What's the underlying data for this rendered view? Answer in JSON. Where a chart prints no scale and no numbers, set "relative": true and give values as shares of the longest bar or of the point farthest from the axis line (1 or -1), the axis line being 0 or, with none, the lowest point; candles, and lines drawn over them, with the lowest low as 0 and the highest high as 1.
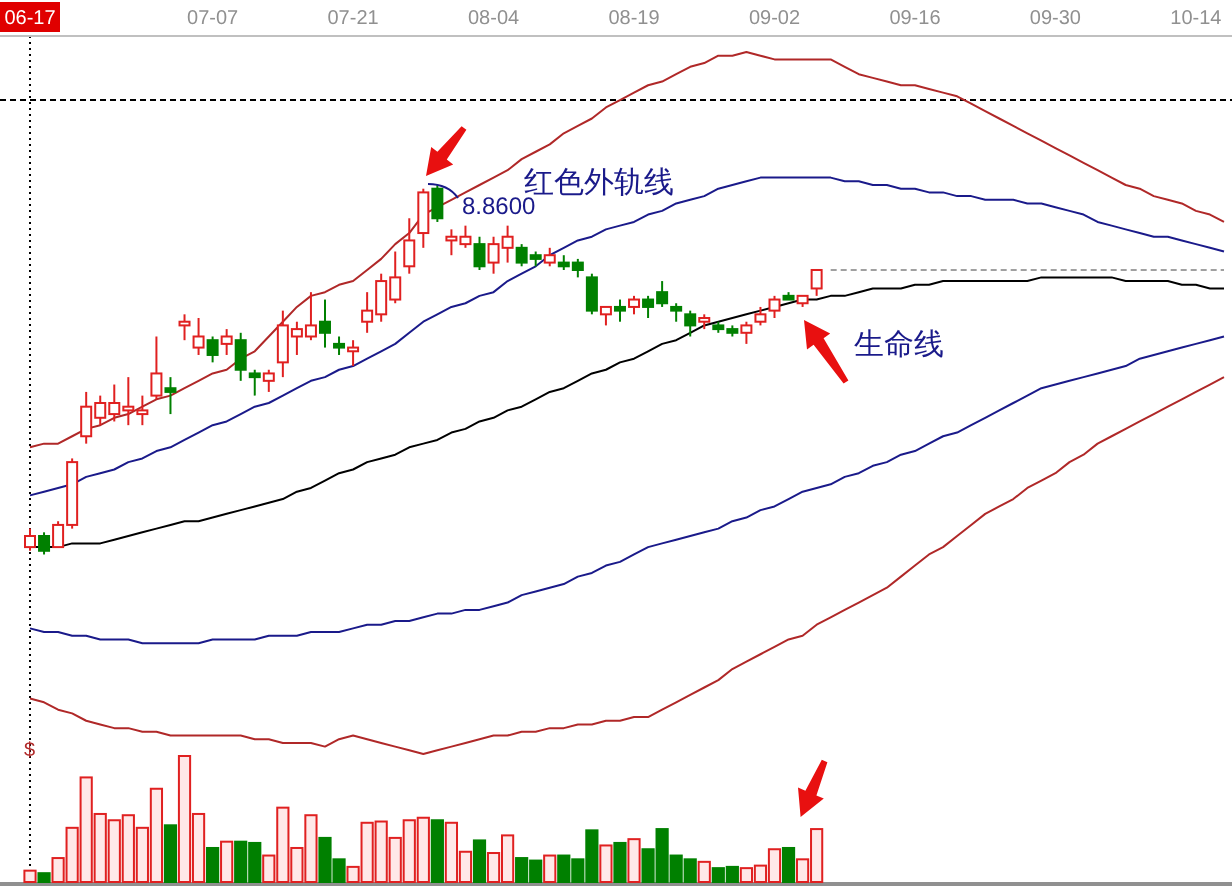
{
  "chart_data": [
    {
      "type": "candlestick",
      "relative": true,
      "categories": [
        "06-17",
        null,
        null,
        null,
        null,
        null,
        null,
        null,
        null,
        null,
        null,
        null,
        null,
        "07-07",
        null,
        null,
        null,
        null,
        null,
        null,
        null,
        null,
        null,
        "07-21",
        null,
        null,
        null,
        null,
        null,
        null,
        null,
        null,
        null,
        "08-04",
        null,
        null,
        null,
        null,
        null,
        null,
        null,
        null,
        null,
        "08-19",
        null,
        null,
        null,
        null,
        null,
        null,
        null,
        null,
        null,
        "09-02",
        null,
        null,
        null,
        null,
        null,
        null,
        null,
        null,
        null,
        "09-16",
        null,
        null,
        null,
        null,
        null,
        null,
        null,
        null,
        null,
        "09-30",
        null,
        null,
        null,
        null,
        null,
        null,
        null,
        null,
        null,
        "10-14",
        null,
        null
      ],
      "ohlc": [
        [
          0.02,
          0.07,
          0.01,
          0.05
        ],
        [
          0.05,
          0.06,
          0,
          0.01
        ],
        [
          0.02,
          0.09,
          0.02,
          0.08
        ],
        [
          0.08,
          0.26,
          0.07,
          0.25
        ],
        [
          0.32,
          0.44,
          0.3,
          0.4
        ],
        [
          0.37,
          0.43,
          0.35,
          0.41
        ],
        [
          0.38,
          0.46,
          0.36,
          0.41
        ],
        [
          0.39,
          0.48,
          0.35,
          0.4
        ],
        [
          0.38,
          0.43,
          0.35,
          0.39
        ],
        [
          0.43,
          0.59,
          0.42,
          0.49
        ],
        [
          0.45,
          0.48,
          0.38,
          0.44
        ],
        [
          0.62,
          0.65,
          0.58,
          0.63
        ],
        [
          0.56,
          0.64,
          0.54,
          0.59
        ],
        [
          0.58,
          0.59,
          0.52,
          0.54
        ],
        [
          0.57,
          0.61,
          0.54,
          0.59
        ],
        [
          0.58,
          0.6,
          0.47,
          0.5
        ],
        [
          0.49,
          0.5,
          0.43,
          0.48
        ],
        [
          0.47,
          0.5,
          0.44,
          0.49
        ],
        [
          0.52,
          0.66,
          0.48,
          0.62
        ],
        [
          0.59,
          0.63,
          0.54,
          0.61
        ],
        [
          0.59,
          0.71,
          0.58,
          0.62
        ],
        [
          0.63,
          0.69,
          0.56,
          0.6
        ],
        [
          0.57,
          0.59,
          0.54,
          0.56
        ],
        [
          0.55,
          0.58,
          0.51,
          0.56
        ],
        [
          0.63,
          0.71,
          0.6,
          0.66
        ],
        [
          0.65,
          0.76,
          0.63,
          0.74
        ],
        [
          0.69,
          0.82,
          0.68,
          0.75
        ],
        [
          0.78,
          0.91,
          0.76,
          0.85
        ],
        [
          0.87,
          0.99,
          0.83,
          0.98
        ],
        [
          0.99,
          1,
          0.9,
          0.91
        ],
        [
          0.85,
          0.88,
          0.81,
          0.86
        ],
        [
          0.84,
          0.89,
          0.83,
          0.86
        ],
        [
          0.84,
          0.86,
          0.77,
          0.78
        ],
        [
          0.79,
          0.86,
          0.76,
          0.84
        ],
        [
          0.83,
          0.89,
          0.79,
          0.86
        ],
        [
          0.83,
          0.84,
          0.78,
          0.79
        ],
        [
          0.81,
          0.82,
          0.78,
          0.8
        ],
        [
          0.79,
          0.83,
          0.78,
          0.81
        ],
        [
          0.79,
          0.81,
          0.77,
          0.78
        ],
        [
          0.79,
          0.8,
          0.75,
          0.77
        ],
        [
          0.75,
          0.76,
          0.65,
          0.66
        ],
        [
          0.65,
          0.67,
          0.62,
          0.67
        ],
        [
          0.67,
          0.69,
          0.63,
          0.66
        ],
        [
          0.67,
          0.7,
          0.65,
          0.69
        ],
        [
          0.69,
          0.7,
          0.64,
          0.67
        ],
        [
          0.71,
          0.74,
          0.67,
          0.68
        ],
        [
          0.67,
          0.68,
          0.63,
          0.66
        ],
        [
          0.65,
          0.66,
          0.59,
          0.62
        ],
        [
          0.63,
          0.65,
          0.61,
          0.64
        ],
        [
          0.62,
          0.63,
          0.6,
          0.61
        ],
        [
          0.61,
          0.62,
          0.59,
          0.6
        ],
        [
          0.6,
          0.63,
          0.57,
          0.62
        ],
        [
          0.63,
          0.67,
          0.62,
          0.65
        ],
        [
          0.66,
          0.7,
          0.64,
          0.69
        ],
        [
          0.7,
          0.71,
          0.69,
          0.69
        ],
        [
          0.68,
          0.7,
          0.67,
          0.7
        ],
        [
          0.72,
          0.77,
          0.7,
          0.77
        ],
        null,
        null,
        null,
        null,
        null,
        null,
        null,
        null,
        null,
        null,
        null,
        null,
        null,
        null,
        null,
        null,
        null,
        null,
        null,
        null,
        null,
        null,
        null,
        null,
        null,
        null,
        null,
        null,
        null
      ],
      "colors": [
        "#e02020",
        "#008000",
        "#e02020",
        "#e02020",
        "#e02020",
        "#e02020",
        "#e02020",
        "#e02020",
        "#e02020",
        "#e02020",
        "#008000",
        "#e02020",
        "#e02020",
        "#008000",
        "#e02020",
        "#008000",
        "#008000",
        "#e02020",
        "#e02020",
        "#e02020",
        "#e02020",
        "#008000",
        "#008000",
        "#e02020",
        "#e02020",
        "#e02020",
        "#e02020",
        "#e02020",
        "#e02020",
        "#008000",
        "#e02020",
        "#e02020",
        "#008000",
        "#e02020",
        "#e02020",
        "#008000",
        "#008000",
        "#e02020",
        "#008000",
        "#008000",
        "#008000",
        "#e02020",
        "#008000",
        "#e02020",
        "#008000",
        "#008000",
        "#008000",
        "#008000",
        "#e02020",
        "#008000",
        "#008000",
        "#e02020",
        "#e02020",
        "#e02020",
        "#008000",
        "#e02020",
        "#e02020",
        null,
        null,
        null,
        null,
        null,
        null,
        null,
        null,
        null,
        null,
        null,
        null,
        null,
        null,
        null,
        null,
        null,
        null,
        null,
        null,
        null,
        null,
        null,
        null,
        null,
        null,
        null,
        null,
        null
      ],
      "series": [
        {
          "type": "line",
          "color": "#b02828",
          "values": [
            0.29,
            0.3,
            0.3,
            0.32,
            0.34,
            0.35,
            0.37,
            0.38,
            0.4,
            0.42,
            0.43,
            0.45,
            0.47,
            0.49,
            0.5,
            0.53,
            0.55,
            0.59,
            0.63,
            0.67,
            0.7,
            0.71,
            0.73,
            0.74,
            0.77,
            0.8,
            0.84,
            0.87,
            0.92,
            0.94,
            0.96,
            0.98,
            1.0,
            1.02,
            1.04,
            1.07,
            1.09,
            1.11,
            1.14,
            1.16,
            1.18,
            1.21,
            1.23,
            1.25,
            1.27,
            1.28,
            1.3,
            1.32,
            1.33,
            1.35,
            1.35,
            1.36,
            1.35,
            1.34,
            1.34,
            1.34,
            1.34,
            1.34,
            1.32,
            1.3,
            1.29,
            1.28,
            1.27,
            1.27,
            1.26,
            1.25,
            1.24,
            1.22,
            1.2,
            1.18,
            1.16,
            1.14,
            1.12,
            1.1,
            1.08,
            1.06,
            1.04,
            1.02,
            1.0,
            0.99,
            0.97,
            0.96,
            0.95,
            0.93,
            0.92,
            0.9
          ]
        },
        {
          "type": "line",
          "color": "#1a1a8a",
          "values": [
            0.16,
            0.17,
            0.18,
            0.19,
            0.21,
            0.22,
            0.23,
            0.25,
            0.26,
            0.28,
            0.29,
            0.31,
            0.33,
            0.35,
            0.36,
            0.38,
            0.4,
            0.41,
            0.43,
            0.45,
            0.47,
            0.48,
            0.5,
            0.51,
            0.53,
            0.55,
            0.57,
            0.6,
            0.63,
            0.65,
            0.67,
            0.68,
            0.7,
            0.71,
            0.74,
            0.76,
            0.78,
            0.81,
            0.83,
            0.85,
            0.86,
            0.88,
            0.89,
            0.9,
            0.92,
            0.93,
            0.95,
            0.96,
            0.97,
            0.99,
            1.0,
            1.01,
            1.02,
            1.02,
            1.02,
            1.02,
            1.02,
            1.02,
            1.01,
            1.01,
            1.0,
            1.0,
            0.99,
            0.99,
            0.98,
            0.98,
            0.97,
            0.97,
            0.96,
            0.96,
            0.96,
            0.95,
            0.95,
            0.94,
            0.93,
            0.92,
            0.9,
            0.89,
            0.88,
            0.87,
            0.86,
            0.86,
            0.85,
            0.84,
            0.83,
            0.82
          ]
        },
        {
          "type": "line",
          "color": "#000000",
          "values": [
            0.02,
            0.02,
            0.02,
            0.03,
            0.03,
            0.03,
            0.04,
            0.05,
            0.06,
            0.07,
            0.08,
            0.09,
            0.09,
            0.1,
            0.11,
            0.12,
            0.13,
            0.14,
            0.15,
            0.17,
            0.18,
            0.2,
            0.22,
            0.23,
            0.25,
            0.26,
            0.27,
            0.29,
            0.3,
            0.31,
            0.33,
            0.34,
            0.36,
            0.37,
            0.39,
            0.4,
            0.42,
            0.44,
            0.45,
            0.47,
            0.49,
            0.5,
            0.52,
            0.53,
            0.55,
            0.57,
            0.58,
            0.6,
            0.62,
            0.63,
            0.64,
            0.65,
            0.66,
            0.67,
            0.68,
            0.69,
            0.69,
            0.7,
            0.7,
            0.71,
            0.72,
            0.72,
            0.72,
            0.73,
            0.73,
            0.74,
            0.74,
            0.74,
            0.74,
            0.74,
            0.74,
            0.74,
            0.75,
            0.75,
            0.75,
            0.75,
            0.75,
            0.75,
            0.74,
            0.74,
            0.74,
            0.74,
            0.73,
            0.73,
            0.72,
            0.72
          ]
        },
        {
          "type": "line",
          "color": "#1a1a8a",
          "values": [
            -0.2,
            -0.21,
            -0.21,
            -0.22,
            -0.22,
            -0.23,
            -0.23,
            -0.23,
            -0.24,
            -0.24,
            -0.24,
            -0.24,
            -0.24,
            -0.23,
            -0.23,
            -0.23,
            -0.23,
            -0.22,
            -0.22,
            -0.22,
            -0.21,
            -0.21,
            -0.21,
            -0.2,
            -0.19,
            -0.19,
            -0.18,
            -0.18,
            -0.17,
            -0.16,
            -0.16,
            -0.15,
            -0.15,
            -0.14,
            -0.13,
            -0.11,
            -0.1,
            -0.09,
            -0.08,
            -0.06,
            -0.05,
            -0.03,
            -0.02,
            0.0,
            0.02,
            0.03,
            0.04,
            0.05,
            0.06,
            0.07,
            0.09,
            0.1,
            0.12,
            0.13,
            0.15,
            0.17,
            0.18,
            0.19,
            0.21,
            0.22,
            0.24,
            0.25,
            0.27,
            0.28,
            0.3,
            0.32,
            0.33,
            0.35,
            0.37,
            0.39,
            0.41,
            0.43,
            0.45,
            0.46,
            0.47,
            0.48,
            0.49,
            0.5,
            0.51,
            0.53,
            0.54,
            0.55,
            0.56,
            0.57,
            0.58,
            0.59
          ]
        },
        {
          "type": "line",
          "color": "#b02828",
          "values": [
            -0.39,
            -0.4,
            -0.42,
            -0.43,
            -0.45,
            -0.46,
            -0.47,
            -0.47,
            -0.48,
            -0.48,
            -0.49,
            -0.49,
            -0.49,
            -0.49,
            -0.49,
            -0.49,
            -0.5,
            -0.5,
            -0.51,
            -0.51,
            -0.51,
            -0.52,
            -0.5,
            -0.49,
            -0.5,
            -0.51,
            -0.52,
            -0.53,
            -0.54,
            -0.53,
            -0.52,
            -0.51,
            -0.5,
            -0.49,
            -0.49,
            -0.48,
            -0.48,
            -0.47,
            -0.47,
            -0.46,
            -0.46,
            -0.45,
            -0.45,
            -0.44,
            -0.44,
            -0.42,
            -0.4,
            -0.38,
            -0.36,
            -0.34,
            -0.31,
            -0.29,
            -0.27,
            -0.25,
            -0.23,
            -0.22,
            -0.19,
            -0.17,
            -0.15,
            -0.13,
            -0.11,
            -0.09,
            -0.06,
            -0.03,
            0.0,
            0.02,
            0.05,
            0.08,
            0.11,
            0.13,
            0.15,
            0.18,
            0.2,
            0.22,
            0.25,
            0.27,
            0.3,
            0.32,
            0.34,
            0.36,
            0.38,
            0.4,
            0.42,
            0.44,
            0.46,
            0.48
          ]
        },
        {
          "type": "line",
          "color": "#a0a0a0",
          "line_style": "dashed",
          "values": [
            null,
            null,
            null,
            null,
            null,
            null,
            null,
            null,
            null,
            null,
            null,
            null,
            null,
            null,
            null,
            null,
            null,
            null,
            null,
            null,
            null,
            null,
            null,
            null,
            null,
            null,
            null,
            null,
            null,
            null,
            null,
            null,
            null,
            null,
            null,
            null,
            null,
            null,
            null,
            null,
            null,
            null,
            null,
            null,
            null,
            null,
            null,
            null,
            null,
            null,
            null,
            null,
            null,
            null,
            null,
            null,
            null,
            0.77,
            0.77,
            0.77,
            0.77,
            0.77,
            0.77,
            0.77,
            0.77,
            0.77,
            0.77,
            0.77,
            0.77,
            0.77,
            0.77,
            0.77,
            0.77,
            0.77,
            0.77,
            0.77,
            0.77,
            0.77,
            0.77,
            0.77,
            0.77,
            0.77,
            0.77,
            0.77,
            0.77,
            0.77
          ]
        }
      ],
      "ref_lines": [
        {
          "axis": "y",
          "value": 1.23,
          "color": "#000000",
          "line_style": "dashed"
        },
        {
          "axis": "x",
          "value": "06-17",
          "color": "#000000",
          "line_style": "dotted"
        }
      ],
      "annotations": [
        "8.8600",
        "红色外轨线",
        "生命线"
      ]
    },
    {
      "type": "bar",
      "relative": true,
      "categories": [
        null,
        null,
        null,
        null,
        null,
        null,
        null,
        null,
        null,
        null,
        null,
        null,
        null,
        null,
        null,
        null,
        null,
        null,
        null,
        null,
        null,
        null,
        null,
        null,
        null,
        null,
        null,
        null,
        null,
        null,
        null,
        null,
        null,
        null,
        null,
        null,
        null,
        null,
        null,
        null,
        null,
        null,
        null,
        null,
        null,
        null,
        null,
        null,
        null,
        null,
        null,
        null,
        null,
        null,
        null,
        null,
        null,
        null,
        null,
        null,
        null,
        null,
        null,
        null,
        null,
        null,
        null,
        null,
        null,
        null,
        null,
        null,
        null,
        null,
        null,
        null,
        null,
        null,
        null,
        null,
        null,
        null,
        null,
        null,
        null,
        null
      ],
      "values": [
        0.09,
        0.07,
        0.19,
        0.43,
        0.83,
        0.54,
        0.49,
        0.53,
        0.43,
        0.74,
        0.45,
        1,
        0.54,
        0.27,
        0.32,
        0.32,
        0.31,
        0.21,
        0.59,
        0.27,
        0.53,
        0.35,
        0.18,
        0.12,
        0.47,
        0.48,
        0.35,
        0.49,
        0.51,
        0.49,
        0.47,
        0.24,
        0.33,
        0.23,
        0.37,
        0.19,
        0.17,
        0.21,
        0.21,
        0.18,
        0.41,
        0.29,
        0.31,
        0.34,
        0.26,
        0.42,
        0.21,
        0.18,
        0.16,
        0.11,
        0.12,
        0.11,
        0.13,
        0.26,
        0.27,
        0.18,
        0.42,
        null,
        null,
        null,
        null,
        null,
        null,
        null,
        null,
        null,
        null,
        null,
        null,
        null,
        null,
        null,
        null,
        null,
        null,
        null,
        null,
        null,
        null,
        null,
        null,
        null,
        null,
        null,
        null,
        null
      ],
      "colors": [
        "#e02020",
        "#008000",
        "#e02020",
        "#e02020",
        "#e02020",
        "#e02020",
        "#e02020",
        "#e02020",
        "#e02020",
        "#e02020",
        "#008000",
        "#e02020",
        "#e02020",
        "#008000",
        "#e02020",
        "#008000",
        "#008000",
        "#e02020",
        "#e02020",
        "#e02020",
        "#e02020",
        "#008000",
        "#008000",
        "#e02020",
        "#e02020",
        "#e02020",
        "#e02020",
        "#e02020",
        "#e02020",
        "#008000",
        "#e02020",
        "#e02020",
        "#008000",
        "#e02020",
        "#e02020",
        "#008000",
        "#008000",
        "#e02020",
        "#008000",
        "#008000",
        "#008000",
        "#e02020",
        "#008000",
        "#e02020",
        "#008000",
        "#008000",
        "#008000",
        "#008000",
        "#e02020",
        "#008000",
        "#008000",
        "#e02020",
        "#e02020",
        "#e02020",
        "#008000",
        "#e02020",
        "#e02020",
        null,
        null,
        null,
        null,
        null,
        null,
        null,
        null,
        null,
        null,
        null,
        null,
        null,
        null,
        null,
        null,
        null,
        null,
        null,
        null,
        null,
        null,
        null,
        null,
        null,
        null,
        null,
        null,
        null
      ],
      "annotations": [
        "$"
      ]
    }
  ]
}
